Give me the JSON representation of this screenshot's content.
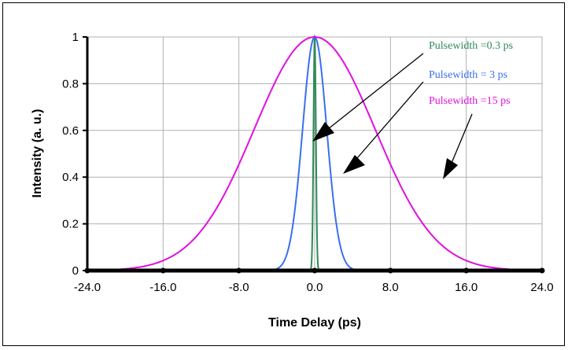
{
  "chart_data": {
    "type": "line",
    "title": "",
    "xlabel": "Time Delay (ps)",
    "ylabel": "Intensity (a. u.)",
    "xlim": [
      -24,
      24
    ],
    "ylim": [
      0,
      1
    ],
    "x_ticks": [
      "-24.0",
      "-16.0",
      "-8.0",
      "0.0",
      "8.0",
      "16.0",
      "24.0"
    ],
    "y_ticks": [
      "0",
      "0.2",
      "0.4",
      "0.6",
      "0.8",
      "1"
    ],
    "grid": true,
    "colors": {
      "0.3ps": "#2e8b57",
      "3ps": "#3a6ff0",
      "15ps": "#e010e0"
    },
    "series": [
      {
        "name": "Pulsewidth =0.3 ps",
        "fwhm_ps": 0.3,
        "x_range": [
          -1.0,
          1.0
        ]
      },
      {
        "name": "Pulsewidth =  3 ps",
        "fwhm_ps": 3,
        "x_range": [
          -10.0,
          10.0
        ]
      },
      {
        "name": "Pulsewidth =15 ps",
        "fwhm_ps": 15,
        "x_range": [
          -24.0,
          24.0
        ]
      }
    ]
  }
}
